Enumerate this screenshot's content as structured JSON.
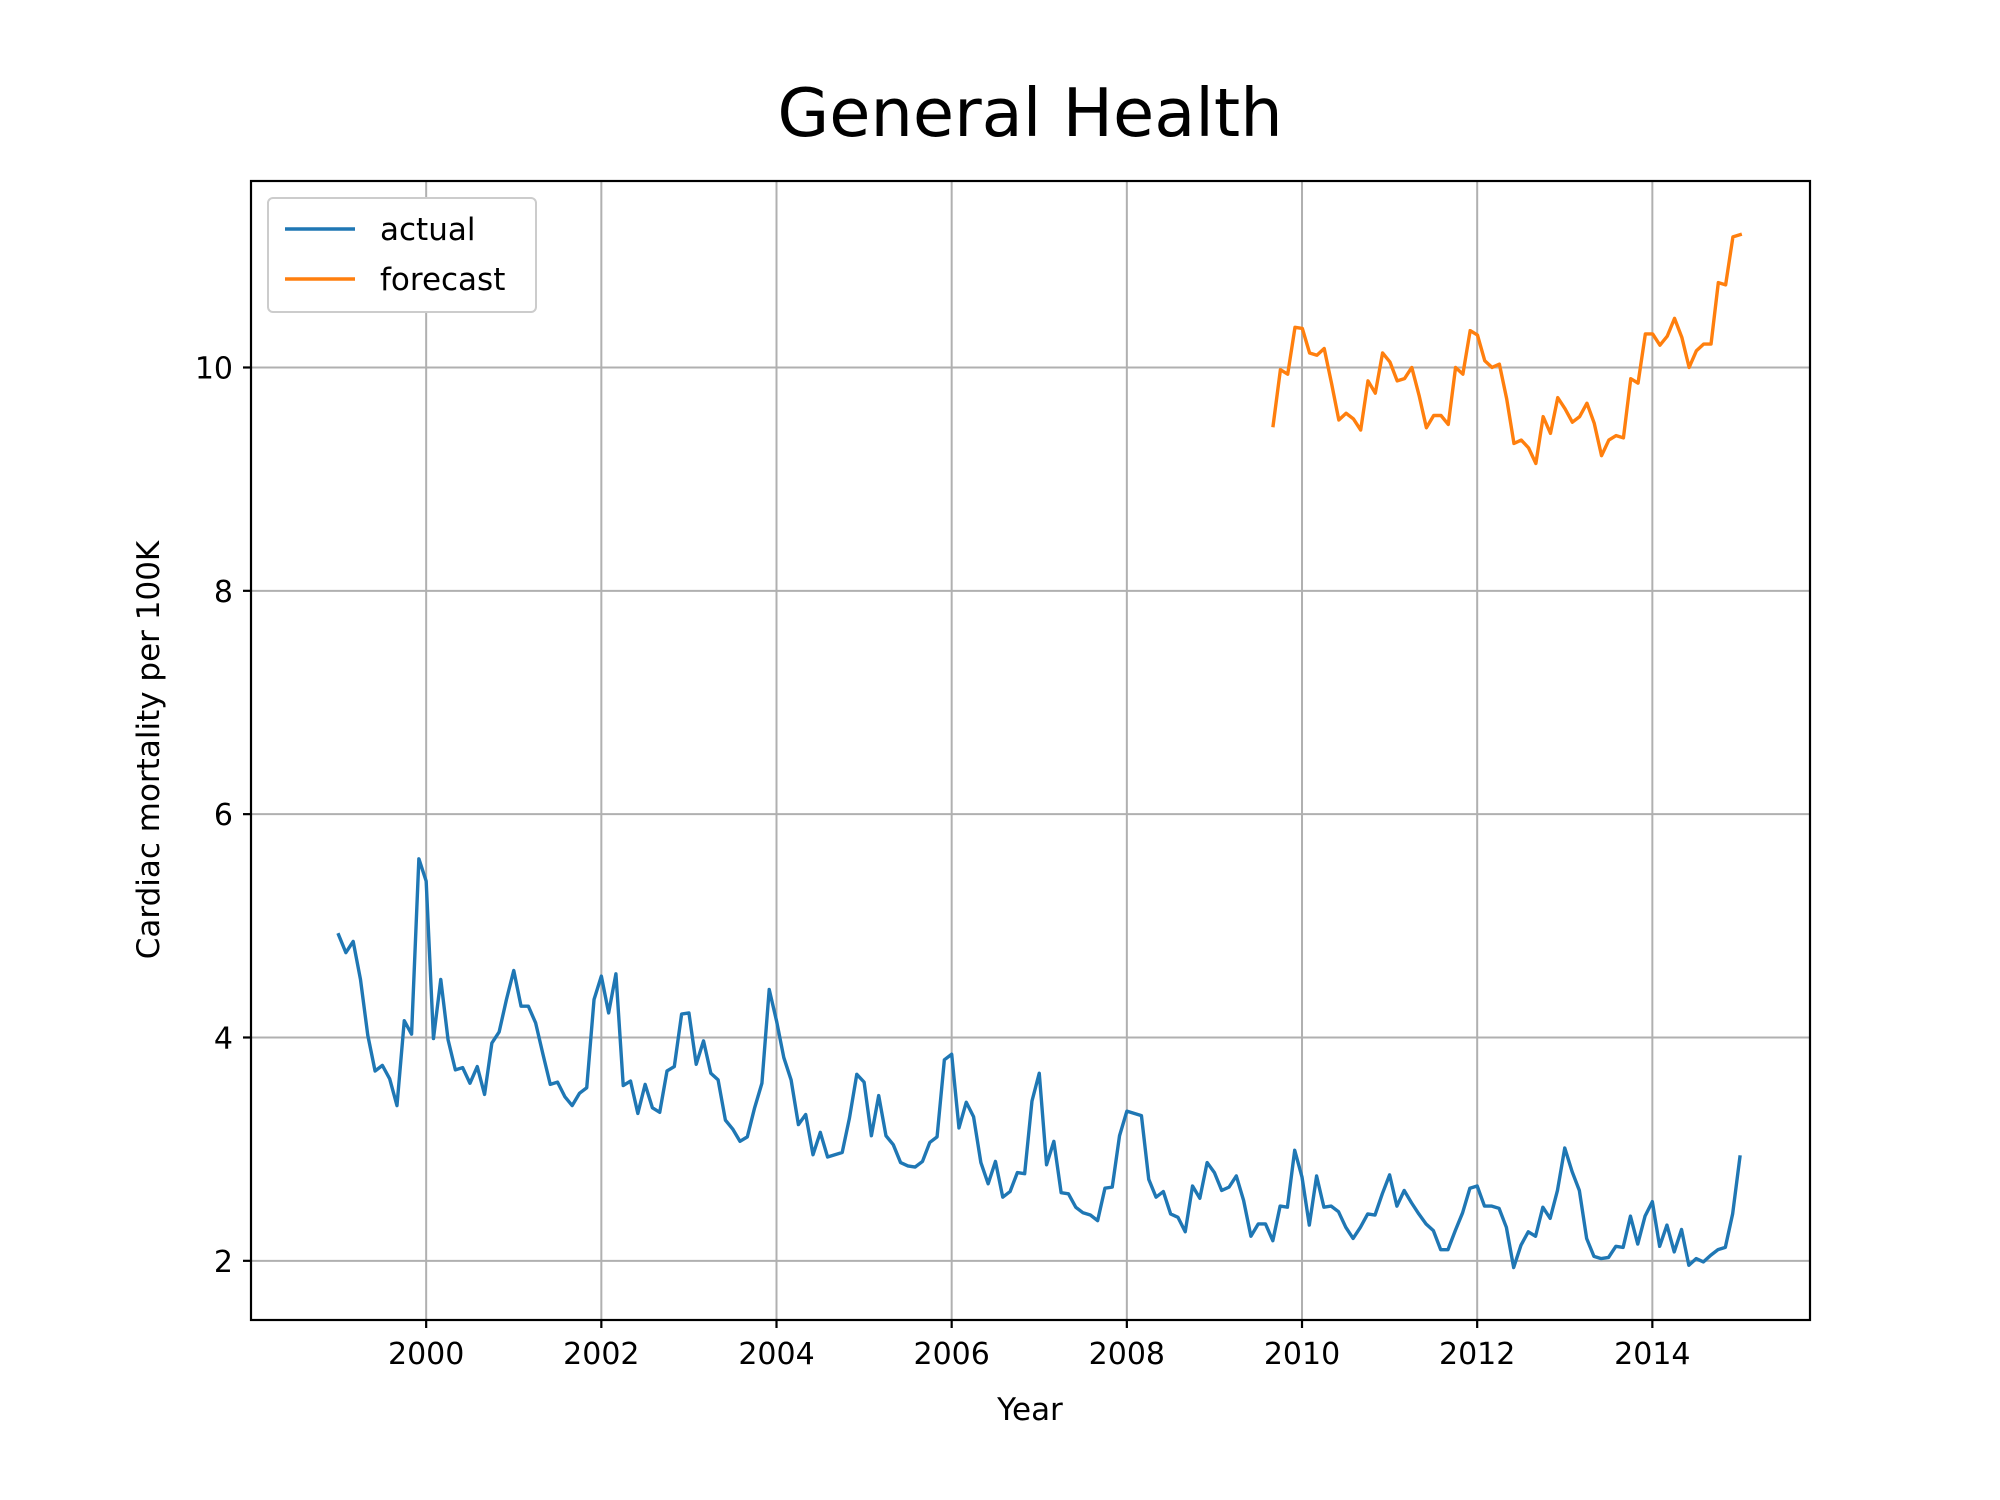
{
  "chart_data": {
    "type": "line",
    "title": "General Health",
    "xlabel": "Year",
    "ylabel": "Cardiac mortality per 100K",
    "xlim": [
      1998.0,
      2015.8
    ],
    "ylim": [
      1.47,
      11.67
    ],
    "xticks": [
      2000,
      2002,
      2004,
      2006,
      2008,
      2010,
      2012,
      2014
    ],
    "xtick_labels": [
      "2000",
      "2002",
      "2004",
      "2006",
      "2008",
      "2010",
      "2012",
      "2014"
    ],
    "yticks": [
      2,
      4,
      6,
      8,
      10
    ],
    "ytick_labels": [
      "2",
      "4",
      "6",
      "8",
      "10"
    ],
    "grid": true,
    "legend_position": "top-left",
    "series": [
      {
        "name": "actual",
        "color": "#1f77b4",
        "x_start": 1999.0,
        "x_step": 0.083333,
        "values": [
          4.92,
          4.76,
          4.86,
          4.52,
          4.02,
          3.7,
          3.75,
          3.63,
          3.39,
          4.15,
          4.03,
          5.6,
          5.4,
          3.99,
          4.52,
          3.98,
          3.71,
          3.73,
          3.59,
          3.74,
          3.49,
          3.95,
          4.05,
          4.34,
          4.6,
          4.28,
          4.28,
          4.13,
          3.85,
          3.58,
          3.6,
          3.47,
          3.39,
          3.5,
          3.55,
          4.34,
          4.55,
          4.22,
          4.57,
          3.57,
          3.61,
          3.32,
          3.58,
          3.37,
          3.33,
          3.7,
          3.74,
          4.21,
          4.22,
          3.76,
          3.97,
          3.68,
          3.62,
          3.26,
          3.18,
          3.07,
          3.11,
          3.37,
          3.59,
          4.43,
          4.15,
          3.82,
          3.62,
          3.22,
          3.31,
          2.95,
          3.15,
          2.93,
          2.95,
          2.97,
          3.28,
          3.67,
          3.6,
          3.12,
          3.48,
          3.12,
          3.04,
          2.88,
          2.85,
          2.84,
          2.89,
          3.06,
          3.11,
          3.8,
          3.85,
          3.19,
          3.42,
          3.29,
          2.88,
          2.69,
          2.89,
          2.57,
          2.62,
          2.79,
          2.78,
          3.43,
          3.68,
          2.86,
          3.07,
          2.61,
          2.6,
          2.48,
          2.43,
          2.41,
          2.36,
          2.65,
          2.66,
          3.12,
          3.34,
          3.32,
          3.3,
          2.73,
          2.57,
          2.62,
          2.42,
          2.39,
          2.26,
          2.67,
          2.56,
          2.88,
          2.79,
          2.63,
          2.66,
          2.76,
          2.54,
          2.22,
          2.33,
          2.33,
          2.18,
          2.49,
          2.48,
          2.99,
          2.75,
          2.32,
          2.76,
          2.48,
          2.49,
          2.44,
          2.3,
          2.2,
          2.3,
          2.42,
          2.41,
          2.6,
          2.77,
          2.49,
          2.63,
          2.52,
          2.42,
          2.33,
          2.27,
          2.1,
          2.1,
          2.27,
          2.43,
          2.65,
          2.67,
          2.49,
          2.49,
          2.47,
          2.3,
          1.94,
          2.14,
          2.26,
          2.22,
          2.48,
          2.38,
          2.63,
          3.01,
          2.8,
          2.63,
          2.2,
          2.04,
          2.02,
          2.03,
          2.13,
          2.12,
          2.4,
          2.15,
          2.4,
          2.53,
          2.13,
          2.32,
          2.08,
          2.28,
          1.96,
          2.02,
          1.99,
          2.05,
          2.1,
          2.12,
          2.42,
          2.93
        ]
      },
      {
        "name": "forecast",
        "color": "#ff7f0e",
        "x_start": 2009.67,
        "x_step": 0.083333,
        "values": [
          9.48,
          9.98,
          9.94,
          10.36,
          10.35,
          10.13,
          10.11,
          10.17,
          9.86,
          9.53,
          9.59,
          9.54,
          9.44,
          9.88,
          9.77,
          10.13,
          10.05,
          9.88,
          9.9,
          10.0,
          9.75,
          9.46,
          9.57,
          9.57,
          9.49,
          10.0,
          9.94,
          10.33,
          10.29,
          10.06,
          10.0,
          10.03,
          9.72,
          9.32,
          9.35,
          9.28,
          9.14,
          9.56,
          9.41,
          9.73,
          9.63,
          9.51,
          9.56,
          9.68,
          9.5,
          9.21,
          9.35,
          9.39,
          9.37,
          9.9,
          9.86,
          10.3,
          10.3,
          10.2,
          10.28,
          10.44,
          10.27,
          10.0,
          10.15,
          10.21,
          10.21,
          10.76,
          10.74,
          11.17,
          11.19
        ]
      }
    ]
  }
}
